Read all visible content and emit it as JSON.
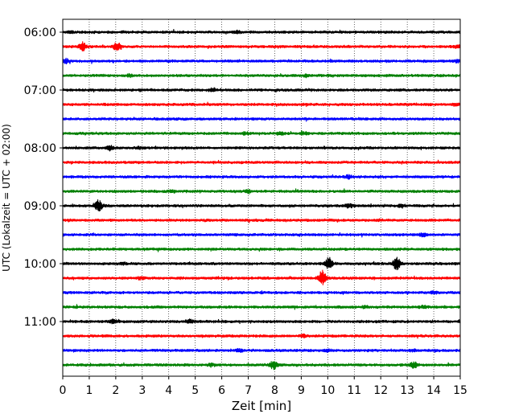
{
  "chart_data": {
    "type": "line",
    "title": "",
    "xlabel": "Zeit  [min]",
    "ylabel": "UTC (Lokalzeit = UTC + 02:00)",
    "xlim": [
      0,
      15
    ],
    "x_ticks": [
      0,
      1,
      2,
      3,
      4,
      5,
      6,
      7,
      8,
      9,
      10,
      11,
      12,
      13,
      14,
      15
    ],
    "y_tick_labels": [
      "06:00",
      "07:00",
      "08:00",
      "09:00",
      "10:00",
      "11:00"
    ],
    "grid": "vertical dotted",
    "trace_interval_minutes": 15,
    "color_cycle": [
      "#000000",
      "#ff0000",
      "#0000ff",
      "#008000"
    ],
    "traces": [
      {
        "start": "06:00",
        "color": "#000000",
        "events": [
          [
            0.3,
            1.0
          ],
          [
            6.6,
            1.2
          ]
        ]
      },
      {
        "start": "06:15",
        "color": "#ff0000",
        "events": [
          [
            0.75,
            5.0
          ],
          [
            2.05,
            5.5
          ],
          [
            14.9,
            2.0
          ]
        ]
      },
      {
        "start": "06:30",
        "color": "#0000ff",
        "events": [
          [
            0.1,
            2.5
          ],
          [
            14.9,
            1.5
          ]
        ]
      },
      {
        "start": "06:45",
        "color": "#008000",
        "events": [
          [
            2.5,
            1.2
          ],
          [
            9.2,
            1.2
          ]
        ]
      },
      {
        "start": "07:00",
        "color": "#000000",
        "events": [
          [
            5.65,
            1.8
          ]
        ]
      },
      {
        "start": "07:15",
        "color": "#ff0000",
        "events": [
          [
            14.8,
            1.2
          ]
        ]
      },
      {
        "start": "07:30",
        "color": "#0000ff",
        "events": []
      },
      {
        "start": "07:45",
        "color": "#008000",
        "events": [
          [
            6.9,
            1.5
          ],
          [
            8.2,
            1.2
          ],
          [
            9.1,
            1.2
          ]
        ]
      },
      {
        "start": "08:00",
        "color": "#000000",
        "events": [
          [
            1.8,
            2.8
          ],
          [
            2.9,
            1.2
          ]
        ]
      },
      {
        "start": "08:15",
        "color": "#ff0000",
        "events": []
      },
      {
        "start": "08:30",
        "color": "#0000ff",
        "events": [
          [
            10.8,
            1.8
          ]
        ]
      },
      {
        "start": "08:45",
        "color": "#008000",
        "events": [
          [
            4.1,
            1.2
          ],
          [
            7.0,
            1.5
          ]
        ]
      },
      {
        "start": "09:00",
        "color": "#000000",
        "events": [
          [
            1.35,
            7.0
          ],
          [
            10.8,
            2.5
          ],
          [
            12.8,
            1.8
          ]
        ]
      },
      {
        "start": "09:15",
        "color": "#ff0000",
        "events": []
      },
      {
        "start": "09:30",
        "color": "#0000ff",
        "events": [
          [
            13.6,
            2.0
          ]
        ]
      },
      {
        "start": "09:45",
        "color": "#008000",
        "events": []
      },
      {
        "start": "10:00",
        "color": "#000000",
        "events": [
          [
            10.05,
            7.0
          ],
          [
            12.6,
            7.0
          ],
          [
            2.3,
            1.0
          ]
        ]
      },
      {
        "start": "10:15",
        "color": "#ff0000",
        "events": [
          [
            9.8,
            9.0
          ],
          [
            2.9,
            1.2
          ]
        ]
      },
      {
        "start": "10:30",
        "color": "#0000ff",
        "events": [
          [
            14.0,
            1.5
          ]
        ]
      },
      {
        "start": "10:45",
        "color": "#008000",
        "events": [
          [
            11.4,
            1.2
          ],
          [
            13.6,
            1.2
          ]
        ]
      },
      {
        "start": "11:00",
        "color": "#000000",
        "events": [
          [
            1.9,
            1.8
          ],
          [
            4.8,
            1.8
          ]
        ]
      },
      {
        "start": "11:15",
        "color": "#ff0000",
        "events": [
          [
            9.1,
            1.5
          ]
        ]
      },
      {
        "start": "11:30",
        "color": "#0000ff",
        "events": [
          [
            6.7,
            1.5
          ],
          [
            10.0,
            1.2
          ],
          [
            13.2,
            1.2
          ]
        ]
      },
      {
        "start": "11:45",
        "color": "#008000",
        "events": [
          [
            7.95,
            5.0
          ],
          [
            13.25,
            3.5
          ],
          [
            5.6,
            1.5
          ]
        ]
      }
    ]
  }
}
